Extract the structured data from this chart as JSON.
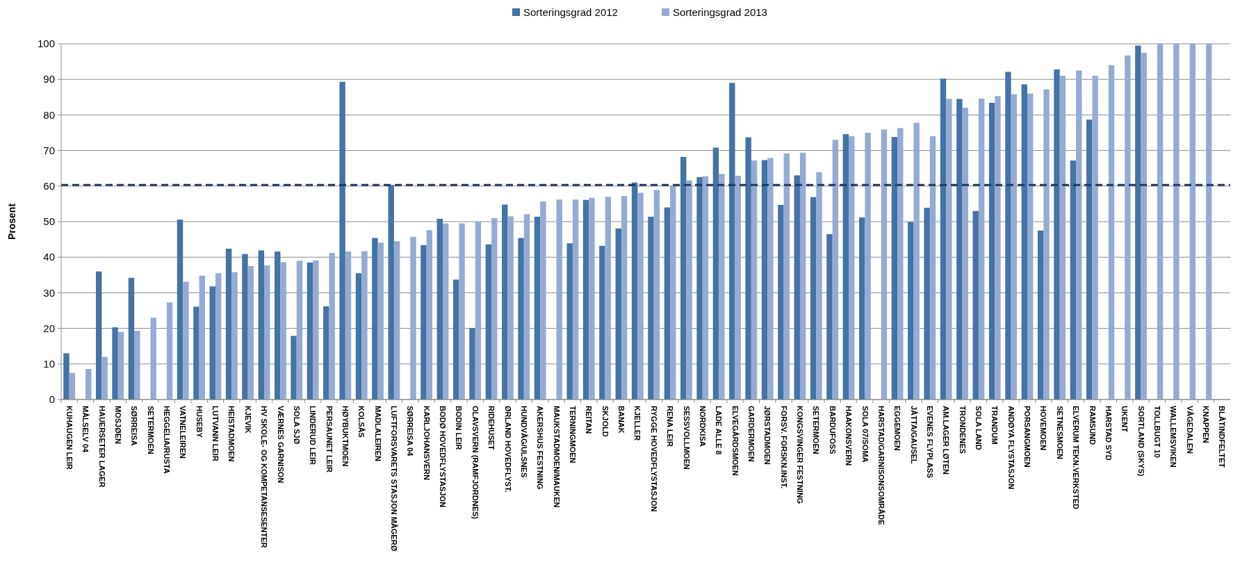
{
  "chart_data": {
    "type": "bar",
    "ylabel": "Prosent",
    "categories": [
      "KUHAUGEN LEIR",
      "MÅLSELV 04",
      "HAUERSETER LAGER",
      "MOSJØEN",
      "SØRREISA",
      "SETERMOEN",
      "HEGGELIA/RUSTA",
      "VATNELEIREN",
      "HUSEBY",
      "LUTVANN LEIR",
      "HEISTADMOEN",
      "KJEVIK",
      "HV SKOLE- OG KOMPETANSESENTER",
      "VÆRNES GARNISON",
      "SOLA SJØ",
      "LINDERUD LEIR",
      "PERSAUNET LEIR",
      "HØYBUKTMOEN",
      "KOLSÅS",
      "MADLALEIREN",
      "LUFTFORSVARETS STASJON MÅGERØ",
      "SØRREISA 04",
      "KARLJOHANSVERN",
      "BODØ HOVEDFLYSTASJON",
      "BODIN LEIR",
      "OLAVSVERN (RAMFJORDNES)",
      "RIDEHUSET",
      "ØRLAND HOVEDFLYST.",
      "HUNDVÅG/ULSNES",
      "AKERSHUS FESTNING",
      "MAUKSTADMOEN/MAUKEN",
      "TERNINGMOEN",
      "REITAN",
      "SKJOLD",
      "BANAK",
      "KJELLER",
      "RYGGE HOVEDFLYSTASJON",
      "RENA LEIR",
      "SESSVOLLMOEN",
      "NORDKISA",
      "LADE ALLE 8",
      "ELVEGÅRDSMOEN",
      "GARDERMOEN",
      "JØRSTADMOEN",
      "FORSV. FORSKN.INST.",
      "KONGSVINGER FESTNING",
      "SETERMOEN",
      "BARDUFOSS",
      "HAAKONSVERN",
      "SOLA 07/SOMA",
      "HARSTAD/GARNISONSOMRÅDE",
      "EGGEMOEN",
      "JÅTTA/GAUSEL",
      "EVENES FLYPLASS",
      "AM.LAGER LØTEN",
      "TRONDENES",
      "SOLA LAND",
      "TRANDUM",
      "ANDØYA FLYSTASJON",
      "PORSANGMOEN",
      "HOVEMOEN",
      "SETNESMOEN",
      "ELVERUM TEKN.VERKSTED",
      "RAMSUND",
      "HARSTAD SYD",
      "UKENT",
      "SORTLAND (SKYS)",
      "TOLLBUGT 10",
      "WALLEMSVIKEN",
      "VÅGEDALEN",
      "KNAPPEN",
      "BLÅTINDFELTET"
    ],
    "series": [
      {
        "name": "Sorteringsgrad 2012",
        "color": "#4572a7",
        "values": [
          13,
          null,
          36,
          20.3,
          34.2,
          null,
          null,
          50.6,
          26.1,
          31.8,
          42.4,
          40.9,
          41.9,
          41.6,
          17.9,
          38.5,
          26.2,
          89.3,
          35.5,
          45.4,
          60.3,
          null,
          43.4,
          50.8,
          33.7,
          20.1,
          43.6,
          54.8,
          45.4,
          51.4,
          null,
          43.9,
          56.1,
          43.2,
          48.1,
          61,
          51.4,
          54,
          68.2,
          62.5,
          70.8,
          89,
          73.7,
          67.3,
          54.7,
          63,
          56.9,
          46.5,
          74.6,
          51.2,
          null,
          73.8,
          49.9,
          53.9,
          90.2,
          84.5,
          53,
          83.4,
          92.1,
          88.6,
          47.5,
          92.8,
          67.2,
          78.7,
          null,
          null,
          99.5,
          null,
          null,
          null,
          null,
          null
        ]
      },
      {
        "name": "Sorteringsgrad 2013",
        "color": "#95abd3",
        "values": [
          7.5,
          8.6,
          12,
          19,
          19.3,
          23,
          27.3,
          33.1,
          34.8,
          35.5,
          35.8,
          37.5,
          37.7,
          38.6,
          39,
          39.1,
          41.2,
          41.6,
          41.7,
          44.1,
          44.5,
          45.7,
          47.6,
          49.5,
          49.5,
          50,
          51,
          51.5,
          52.1,
          55.7,
          56.2,
          56.2,
          56.7,
          57,
          57.2,
          58.1,
          58.9,
          60,
          61.6,
          62.8,
          63.4,
          62.9,
          67.2,
          67.9,
          69.2,
          69.4,
          63.9,
          73,
          74,
          75,
          75.9,
          76.3,
          77.8,
          74,
          84.5,
          82,
          84.6,
          85.3,
          85.8,
          86,
          87.2,
          91,
          92.5,
          91,
          94,
          96.7,
          97.5,
          100,
          100,
          100,
          100,
          null
        ]
      }
    ],
    "ylim": [
      0,
      100
    ],
    "yticks": [
      0,
      10,
      20,
      30,
      40,
      50,
      60,
      70,
      80,
      90,
      100
    ],
    "grid": "y",
    "legend": "top",
    "ref_lines": [
      {
        "axis": "y",
        "value": 60.3,
        "color": "#1f3864",
        "line_style": "dashed"
      }
    ]
  }
}
